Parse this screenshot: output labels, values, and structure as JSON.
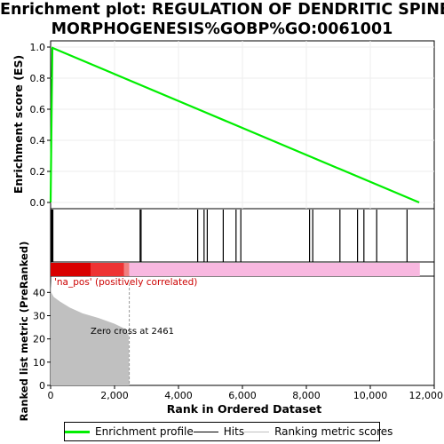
{
  "chart_data": {
    "type": "line",
    "title_lines": [
      "Enrichment plot: REGULATION OF DENDRITIC SPINE",
      "MORPHOGENESIS%GOBP%GO:0061001"
    ],
    "xlabel": "Rank in Ordered Dataset",
    "es_ylabel": "Enrichment score (ES)",
    "metric_ylabel": "Ranked list metric (PreRanked)",
    "x_ticks": [
      "0",
      "2,000",
      "4,000",
      "6,000",
      "8,000",
      "10,000",
      "12,000"
    ],
    "x_tick_values": [
      0,
      2000,
      4000,
      6000,
      8000,
      10000,
      12000
    ],
    "es_ticks": [
      "0.0",
      "0.2",
      "0.4",
      "0.6",
      "0.8",
      "1.0"
    ],
    "es_tick_values": [
      0.0,
      0.2,
      0.4,
      0.6,
      0.8,
      1.0
    ],
    "metric_ticks": [
      "0",
      "10",
      "20",
      "30",
      "40"
    ],
    "metric_tick_values": [
      0,
      10,
      20,
      30,
      40
    ],
    "xlim": [
      0,
      12000
    ],
    "es_ylim": [
      -0.04,
      1.04
    ],
    "metric_ylim": [
      0,
      47
    ],
    "n_genes": 11550,
    "es_curve": [
      [
        0,
        0.0
      ],
      [
        28,
        0.52
      ],
      [
        55,
        0.995
      ],
      [
        11530,
        0.0
      ]
    ],
    "hits": [
      20,
      40,
      55,
      70,
      2800,
      2830,
      4600,
      4800,
      4900,
      5400,
      5800,
      5950,
      8100,
      8200,
      9050,
      9600,
      9800,
      10200,
      11150
    ],
    "metric_curve": [
      [
        0,
        45
      ],
      [
        20,
        40
      ],
      [
        100,
        38
      ],
      [
        300,
        36
      ],
      [
        600,
        33.5
      ],
      [
        1000,
        31
      ],
      [
        1500,
        29
      ],
      [
        2000,
        26.5
      ],
      [
        2350,
        24.2
      ],
      [
        2440,
        21.5
      ],
      [
        2461,
        0
      ]
    ],
    "zero_cross": 2461,
    "zero_cross_label": "Zero cross at 2461",
    "pos_label": "'na_pos' (positively correlated)",
    "colors": {
      "es_line": "#00ee00",
      "hit": "#000000",
      "metric_fill": "#c0c0c0",
      "dark_red": "#d90000",
      "red": "#ee3333",
      "pink": "#f8b8e0"
    },
    "legend": [
      "Enrichment profile",
      "Hits",
      "Ranking metric scores"
    ]
  }
}
